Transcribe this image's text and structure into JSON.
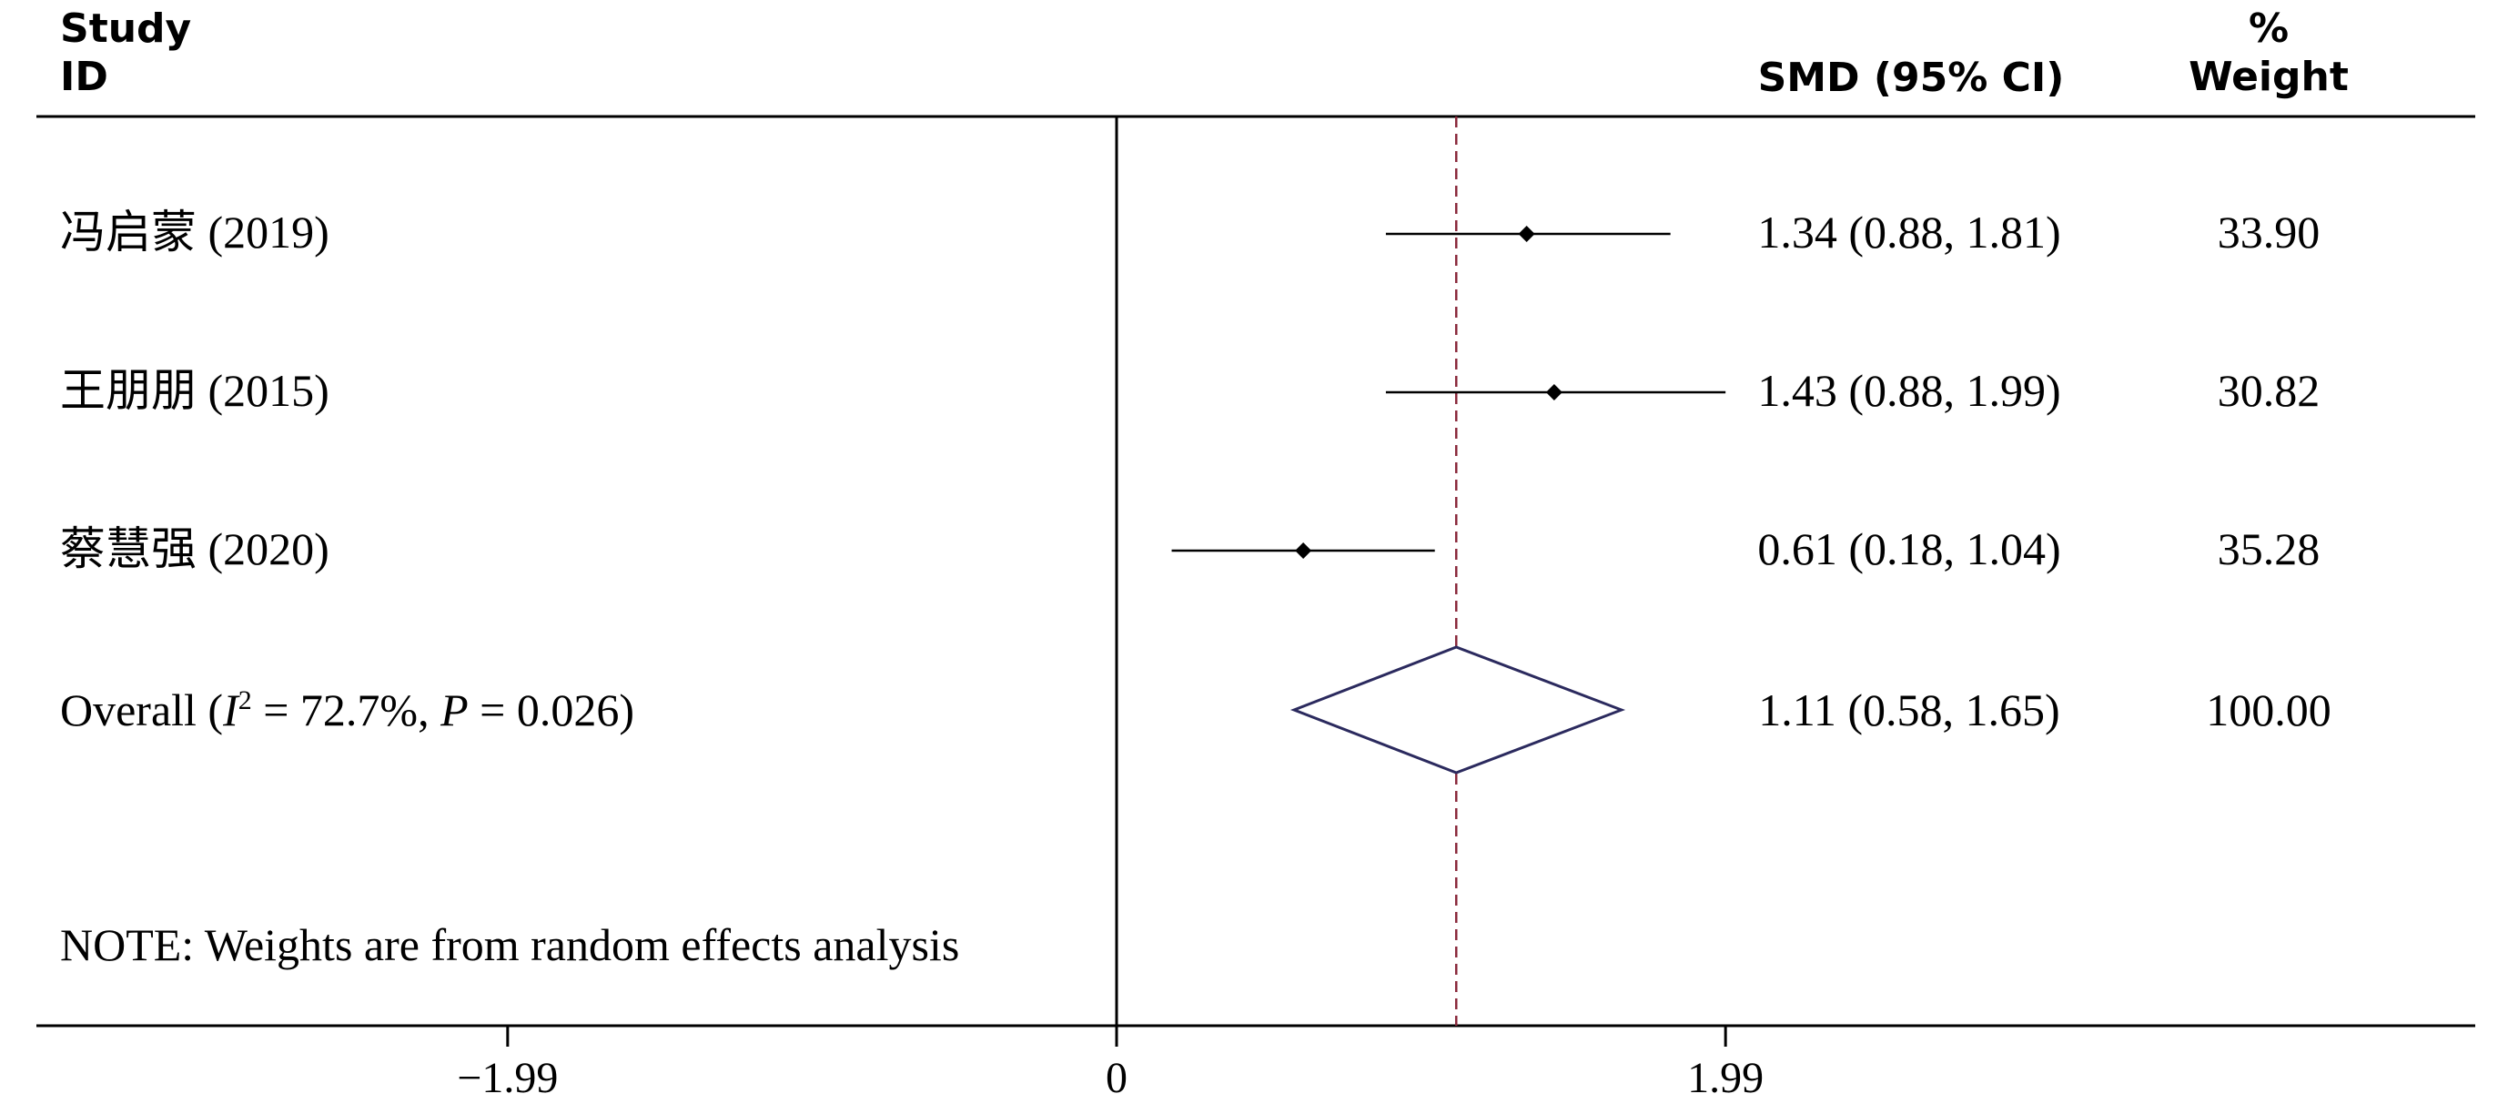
{
  "headers": {
    "study_line1": "Study",
    "study_line2": "ID",
    "effect": "SMD (95% CI)",
    "weight_line1": "%",
    "weight_line2": "Weight"
  },
  "note": "NOTE: Weights are from random effects analysis",
  "overall_label": {
    "prefix": "Overall  (",
    "i": "I",
    "sup": "2",
    "i_value": " = 72.7%, ",
    "p": "P",
    "p_value": " = 0.026)"
  },
  "colors": {
    "diamond": "#2b2a5e",
    "null_line": "#8a2a3c",
    "line": "#000000"
  },
  "chart_data": {
    "type": "forest",
    "measure": "SMD",
    "studies": [
      {
        "label": "冯启蒙 (2019)",
        "est": 1.34,
        "lo": 0.88,
        "hi": 1.81,
        "ci_text": "1.34 (0.88, 1.81)",
        "weight": "33.90"
      },
      {
        "label": "王朋朋 (2015)",
        "est": 1.43,
        "lo": 0.88,
        "hi": 1.99,
        "ci_text": "1.43 (0.88, 1.99)",
        "weight": "30.82"
      },
      {
        "label": "蔡慧强 (2020)",
        "est": 0.61,
        "lo": 0.18,
        "hi": 1.04,
        "ci_text": "0.61 (0.18, 1.04)",
        "weight": "35.28"
      }
    ],
    "overall": {
      "est": 1.11,
      "lo": 0.58,
      "hi": 1.65,
      "ci_text": "1.11 (0.58, 1.65)",
      "weight": "100.00"
    },
    "x_ticks": [
      {
        "value": -1.99,
        "label": "−1.99"
      },
      {
        "value": 0,
        "label": "0"
      },
      {
        "value": 1.99,
        "label": "1.99"
      }
    ],
    "null_value": 0,
    "overall_line": 1.11,
    "xlim": [
      -3.53,
      4.44
    ],
    "grid": false,
    "legend": "none"
  }
}
